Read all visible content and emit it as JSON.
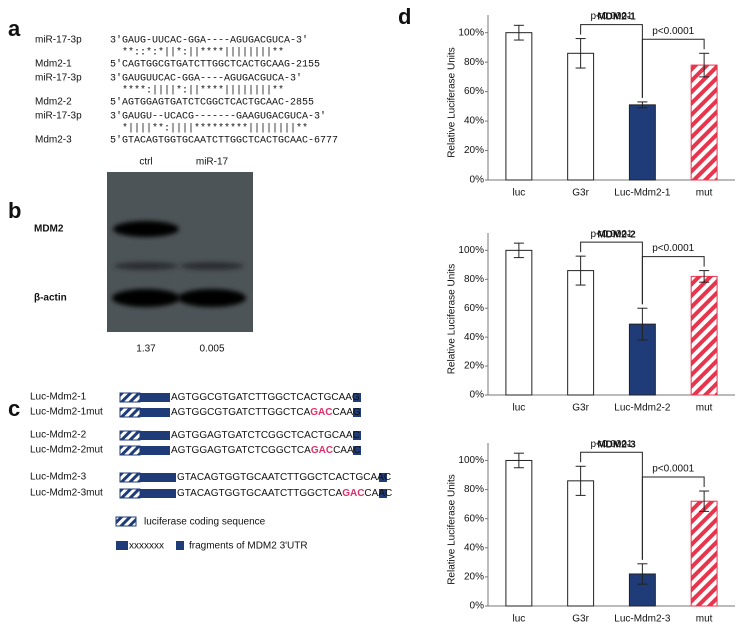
{
  "panels": {
    "a": {
      "label": "a",
      "alignments": [
        {
          "mirna": "miR-17-3p",
          "mirna_seq": "3'GAUG-UUCAC-GGA----AGUGACGUCA-3'",
          "match": "  **::*:*||*:||****||||||||**",
          "target": "Mdm2-1",
          "target_seq": "5'CAGTGGCGTGATCTTGGCTCACTGCAAG-2155"
        },
        {
          "mirna": "miR-17-3p",
          "mirna_seq": "3'GAUGUUCAC-GGA----AGUGACGUCA-3'",
          "match": "  ****:||||*:||****||||||||**",
          "target": "Mdm2-2",
          "target_seq": "5'AGTGGAGTGATCTCGGCTCACTGCAAC-2855"
        },
        {
          "mirna": "miR-17-3p",
          "mirna_seq": "3'GAUGU--UCACG-------GAAGUGACGUCA-3'",
          "match": "  *||||**:||||*********||||||||**",
          "target": "Mdm2-3",
          "target_seq": "5'GTACAGTGGTGCAATCTTGGCTCACTGCAAC-6777"
        }
      ]
    },
    "b": {
      "label": "b",
      "lanes": [
        "ctrl",
        "miR-17"
      ],
      "bands": [
        "MDM2",
        "β-actin"
      ],
      "ratios": [
        1.37,
        0.005
      ]
    },
    "c": {
      "label": "c",
      "constructs": [
        {
          "name": "Luc-Mdm2-1",
          "sequence": [
            "AGTGGCGTGATCTTGGCTCACTGCAAG"
          ]
        },
        {
          "name": "Luc-Mdm2-1mut",
          "sequence": [
            "AGTGGCGTGATCTTGGCTCA",
            "GAC",
            "CAAG"
          ]
        },
        {
          "name": "Luc-Mdm2-2",
          "sequence": [
            "AGTGGAGTGATCTCGGCTCACTGCAAC"
          ]
        },
        {
          "name": "Luc-Mdm2-2mut",
          "sequence": [
            "AGTGGAGTGATCTCGGCTCA",
            "GAC",
            "CAAC"
          ]
        },
        {
          "name": "Luc-Mdm2-3",
          "sequence": [
            "GTACAGTGGTGCAATCTTGGCTCACTGCAAC"
          ]
        },
        {
          "name": "Luc-Mdm2-3mut",
          "sequence": [
            "GTACAGTGGTGCAATCTTGGCTCA",
            "GAC",
            "CAAC"
          ]
        }
      ],
      "legend": {
        "luciferase": "luciferase coding sequence",
        "marker": "xxxxxxx",
        "fragment": "fragments of MDM2 3'UTR"
      }
    },
    "d": {
      "label": "d"
    }
  },
  "chart_data": [
    {
      "type": "bar",
      "title": "MDM2-1",
      "y_label": "Relative Luciferase Units",
      "categories": [
        "luc",
        "G3r",
        "Luc-Mdm2-1",
        "mut"
      ],
      "values": [
        100,
        86,
        51,
        78
      ],
      "errors": [
        5,
        10,
        2,
        8
      ],
      "colors": [
        "#ffffff",
        "#ffffff",
        "#1f3c78",
        "#e8354e"
      ],
      "hatched": [
        false,
        false,
        false,
        true
      ],
      "annotations": [
        "p<0.0001",
        "p<0.0001"
      ],
      "ylim": [
        0,
        112
      ],
      "yticks": [
        {
          "value": 0,
          "label": "0%"
        },
        {
          "value": 20,
          "label": "20%"
        },
        {
          "value": 40,
          "label": "40%"
        },
        {
          "value": 60,
          "label": "60%"
        },
        {
          "value": 80,
          "label": "80%"
        },
        {
          "value": 100,
          "label": "100%"
        }
      ]
    },
    {
      "type": "bar",
      "title": "MDM2-2",
      "y_label": "Relative Luciferase Units",
      "categories": [
        "luc",
        "G3r",
        "Luc-Mdm2-2",
        "mut"
      ],
      "values": [
        100,
        86,
        49,
        82
      ],
      "errors": [
        5,
        10,
        11,
        4
      ],
      "colors": [
        "#ffffff",
        "#ffffff",
        "#1f3c78",
        "#e8354e"
      ],
      "hatched": [
        false,
        false,
        false,
        true
      ],
      "annotations": [
        "p<0.0001",
        "p<0.0001"
      ],
      "ylim": [
        0,
        112
      ],
      "yticks": [
        {
          "value": 0,
          "label": "0%"
        },
        {
          "value": 20,
          "label": "20%"
        },
        {
          "value": 40,
          "label": "40%"
        },
        {
          "value": 60,
          "label": "60%"
        },
        {
          "value": 80,
          "label": "80%"
        },
        {
          "value": 100,
          "label": "100%"
        }
      ]
    },
    {
      "type": "bar",
      "title": "MDM2-3",
      "y_label": "Relative Luciferase Units",
      "categories": [
        "luc",
        "G3r",
        "Luc-Mdm2-3",
        "mut"
      ],
      "values": [
        100,
        86,
        22,
        72
      ],
      "errors": [
        5,
        10,
        7,
        7
      ],
      "colors": [
        "#ffffff",
        "#ffffff",
        "#1f3c78",
        "#e8354e"
      ],
      "hatched": [
        false,
        false,
        false,
        true
      ],
      "annotations": [
        "p<0.0001",
        "p<0.0001"
      ],
      "ylim": [
        0,
        112
      ],
      "yticks": [
        {
          "value": 0,
          "label": "0%"
        },
        {
          "value": 20,
          "label": "20%"
        },
        {
          "value": 40,
          "label": "40%"
        },
        {
          "value": 60,
          "label": "60%"
        },
        {
          "value": 80,
          "label": "80%"
        },
        {
          "value": 100,
          "label": "100%"
        }
      ]
    }
  ]
}
